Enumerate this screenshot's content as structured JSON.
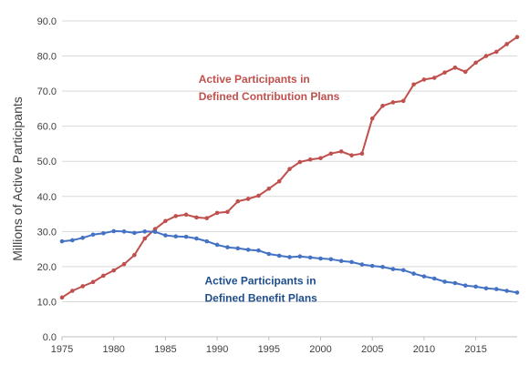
{
  "chart_data": {
    "type": "line",
    "xlabel": "",
    "ylabel": "Millions of Active Participants",
    "xlim": [
      1975,
      2019
    ],
    "ylim": [
      0,
      90
    ],
    "x_ticks": [
      1975,
      1980,
      1985,
      1990,
      1995,
      2000,
      2005,
      2010,
      2015
    ],
    "y_ticks": [
      "0.0",
      "10.0",
      "20.0",
      "30.0",
      "40.0",
      "50.0",
      "60.0",
      "70.0",
      "80.0",
      "90.0"
    ],
    "grid": "horizontal",
    "legend": "none",
    "x": [
      1975,
      1976,
      1977,
      1978,
      1979,
      1980,
      1981,
      1982,
      1983,
      1984,
      1985,
      1986,
      1987,
      1988,
      1989,
      1990,
      1991,
      1992,
      1993,
      1994,
      1995,
      1996,
      1997,
      1998,
      1999,
      2000,
      2001,
      2002,
      2003,
      2004,
      2005,
      2006,
      2007,
      2008,
      2009,
      2010,
      2011,
      2012,
      2013,
      2014,
      2015,
      2016,
      2017,
      2018,
      2019
    ],
    "series": [
      {
        "name": "Active Participants in Defined Contribution Plans",
        "color": "#c0504d",
        "values": [
          11.2,
          13.1,
          14.4,
          15.6,
          17.4,
          18.9,
          20.7,
          23.3,
          28.0,
          30.7,
          33.0,
          34.4,
          34.8,
          34.0,
          33.8,
          35.3,
          35.6,
          38.6,
          39.3,
          40.2,
          42.2,
          44.3,
          47.8,
          49.8,
          50.5,
          50.9,
          52.2,
          52.8,
          51.7,
          52.2,
          62.2,
          65.8,
          66.8,
          67.2,
          71.9,
          73.3,
          73.8,
          75.3,
          76.7,
          75.5,
          78.1,
          80.0,
          81.2,
          83.4,
          85.4
        ]
      },
      {
        "name": "Active Participants in Defined Benefit Plans",
        "color": "#4472c4",
        "values": [
          27.2,
          27.5,
          28.2,
          29.1,
          29.5,
          30.1,
          30.0,
          29.6,
          30.0,
          29.9,
          28.9,
          28.6,
          28.5,
          28.0,
          27.2,
          26.2,
          25.5,
          25.2,
          24.8,
          24.6,
          23.6,
          23.1,
          22.7,
          22.9,
          22.6,
          22.3,
          22.1,
          21.6,
          21.3,
          20.6,
          20.2,
          19.9,
          19.3,
          19.0,
          18.0,
          17.2,
          16.6,
          15.7,
          15.3,
          14.6,
          14.3,
          13.8,
          13.6,
          13.1,
          12.6
        ]
      }
    ],
    "annotations": [
      {
        "lines": [
          "Active Participants in",
          "Defined Contribution Plans"
        ],
        "color": "#c0504d",
        "anchor_x": 1988.2,
        "anchor_y": 72.4
      },
      {
        "lines": [
          "Active Participants in",
          "Defined Benefit Plans"
        ],
        "color": "#1f4e8c",
        "anchor_x": 1988.8,
        "anchor_y": 14.9
      }
    ]
  }
}
